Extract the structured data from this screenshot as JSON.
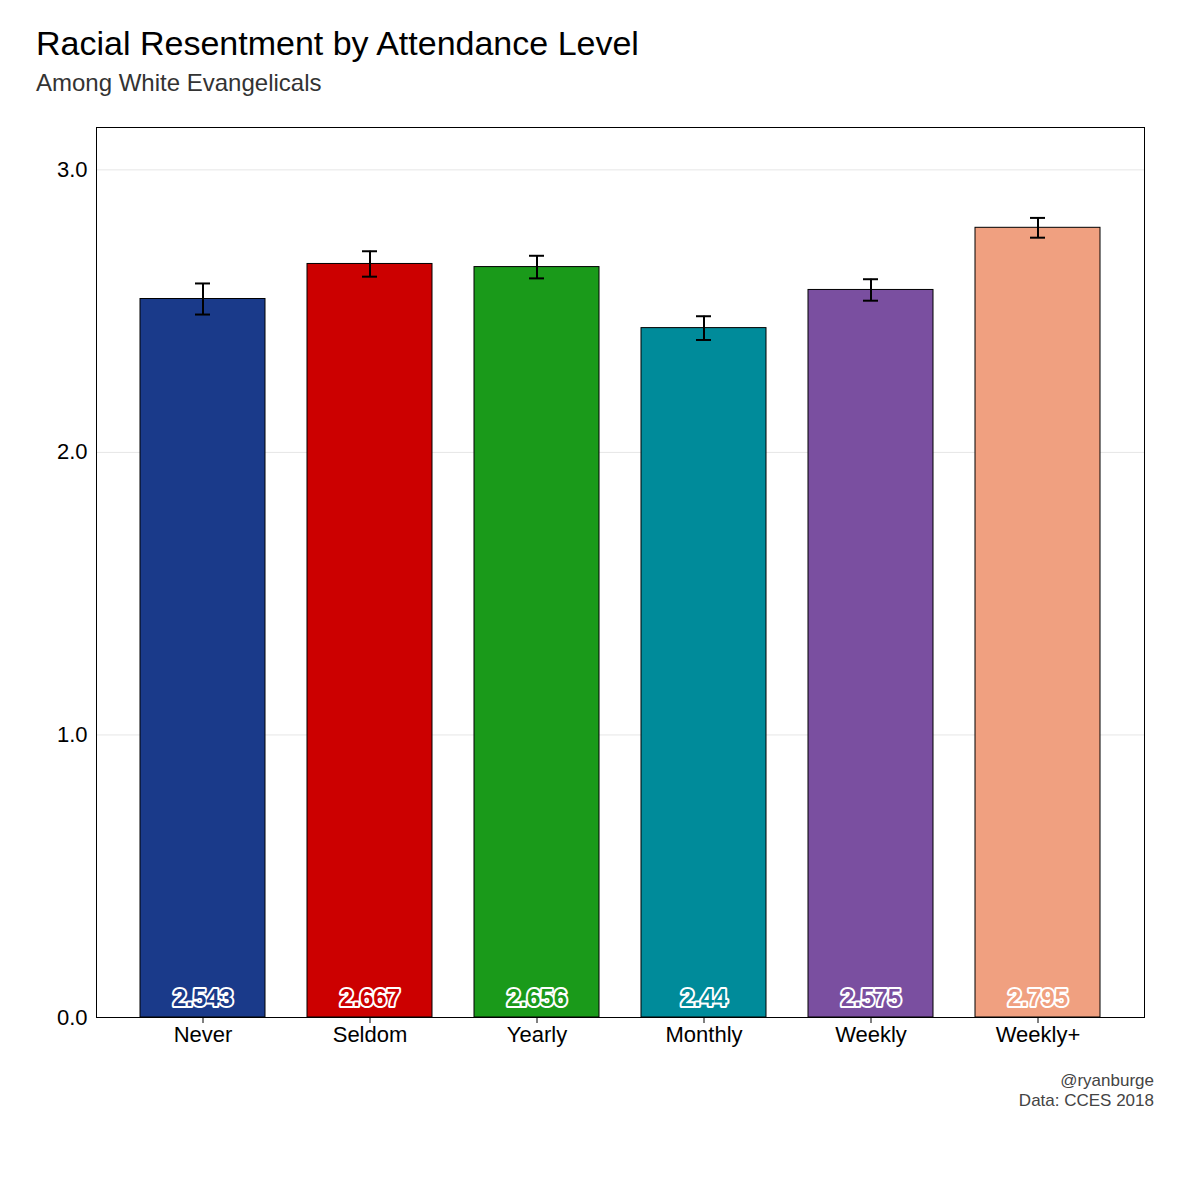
{
  "chart_data": {
    "type": "bar",
    "title": "Racial Resentment by Attendance Level",
    "subtitle": "Among White Evangelicals",
    "categories": [
      "Never",
      "Seldom",
      "Yearly",
      "Monthly",
      "Weekly",
      "Weekly+"
    ],
    "values": [
      2.543,
      2.667,
      2.656,
      2.44,
      2.575,
      2.795
    ],
    "errors": [
      0.055,
      0.045,
      0.04,
      0.042,
      0.038,
      0.035
    ],
    "colors": [
      "#1a3a8a",
      "#cc0000",
      "#1a9a1a",
      "#008b9a",
      "#7a4fa0",
      "#f0a080"
    ],
    "ylim": [
      0,
      3.15
    ],
    "yticks": [
      0,
      1,
      2,
      3
    ],
    "grid": true,
    "data_labels": true,
    "annotation": "@ryanburge\nData: CCES 2018"
  }
}
